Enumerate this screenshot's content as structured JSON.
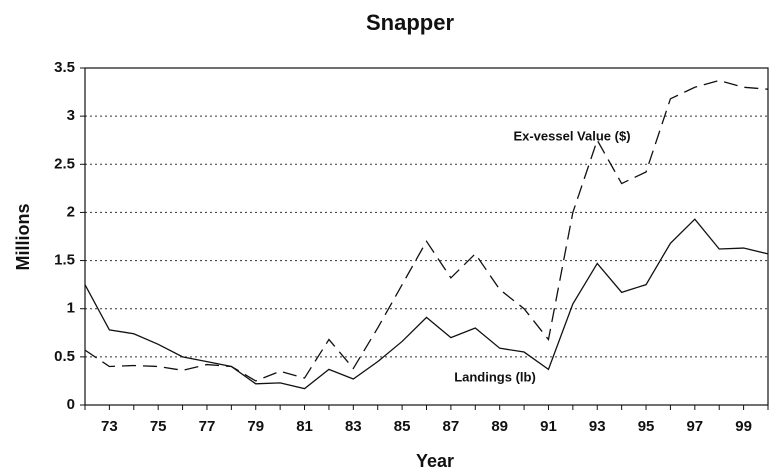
{
  "chart_data": {
    "type": "line",
    "title": "Snapper",
    "y_label": "Millions",
    "x_label": "Year",
    "annotations": [
      "Ex-vessel Value ($)",
      "Landings (lb)"
    ],
    "categories": [
      null,
      "73",
      null,
      "75",
      null,
      "77",
      null,
      "79",
      null,
      "81",
      null,
      "83",
      null,
      "85",
      null,
      "87",
      null,
      "89",
      null,
      "91",
      null,
      "93",
      null,
      "95",
      null,
      "97",
      null,
      "99",
      null
    ],
    "series": [
      {
        "name": "Landings (lb)",
        "color": "#111111",
        "dash": false,
        "values": [
          1.25,
          0.78,
          0.74,
          0.63,
          0.5,
          0.45,
          0.4,
          0.22,
          0.23,
          0.17,
          0.37,
          0.27,
          0.45,
          0.66,
          0.91,
          0.7,
          0.8,
          0.59,
          0.55,
          0.37,
          1.05,
          1.47,
          1.17,
          1.25,
          1.68,
          1.93,
          1.62,
          1.63,
          1.57
        ]
      },
      {
        "name": "Ex-vessel Value ($)",
        "color": "#111111",
        "dash": true,
        "values": [
          0.57,
          0.4,
          0.41,
          0.4,
          0.36,
          0.42,
          0.4,
          0.25,
          0.35,
          0.28,
          0.68,
          0.38,
          0.8,
          1.25,
          1.7,
          1.32,
          1.57,
          1.2,
          1.0,
          0.68,
          2.0,
          2.75,
          2.3,
          2.42,
          3.18,
          3.3,
          3.37,
          3.3,
          3.28
        ]
      }
    ],
    "ylim": [
      0,
      3.5
    ],
    "yticks": [
      0,
      0.5,
      1,
      1.5,
      2,
      2.5,
      3,
      3.5
    ],
    "grid": true
  }
}
